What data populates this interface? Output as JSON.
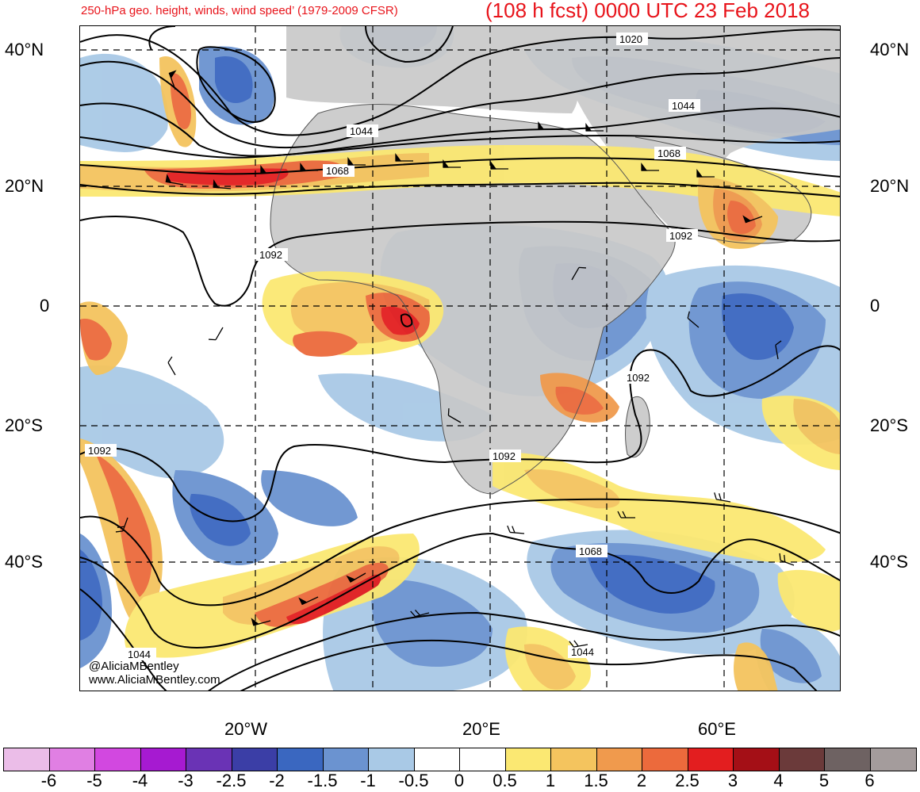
{
  "header": {
    "subtitle": "250-hPa geo. height, winds, wind speed’ (1979-2009 CFSR)",
    "valid_time": "(108 h fcst) 0000 UTC 23 Feb 2018"
  },
  "credits": {
    "twitter": "@AliciaMBentley",
    "website": "www.AliciaMBentley.com"
  },
  "axes": {
    "lat_left": [
      "40°N",
      "20°N",
      "0",
      "20°S",
      "40°S"
    ],
    "lat_right": [
      "40°N",
      "20°N",
      "0",
      "20°S",
      "40°S"
    ],
    "lon": [
      "20°W",
      "20°E",
      "60°E"
    ]
  },
  "contour_labels": [
    "1020",
    "1044",
    "1044",
    "1068",
    "1068",
    "1092",
    "1092",
    "1092",
    "1092",
    "1092",
    "1068",
    "1044",
    "1044"
  ],
  "colorbar": {
    "labels": [
      "-6",
      "-5",
      "-4",
      "-3",
      "-2.5",
      "-2",
      "-1.5",
      "-1",
      "-0.5",
      "0",
      "0.5",
      "1",
      "1.5",
      "2",
      "2.5",
      "3",
      "4",
      "5",
      "6"
    ],
    "colors": [
      "#ebbde8",
      "#e07fe3",
      "#d248e0",
      "#a61ad1",
      "#6a33b5",
      "#3b3ea6",
      "#3a67c0",
      "#6b93d0",
      "#a9c9e6",
      "#ffffff",
      "#ffffff",
      "#fbe872",
      "#f4c45e",
      "#f09a4d",
      "#ec6a3c",
      "#e31e1f",
      "#a40f16",
      "#6b3a3a",
      "#6e6262",
      "#a49c9c"
    ]
  },
  "colors": {
    "title": "#e8141b",
    "land": "#c8c8c8"
  }
}
